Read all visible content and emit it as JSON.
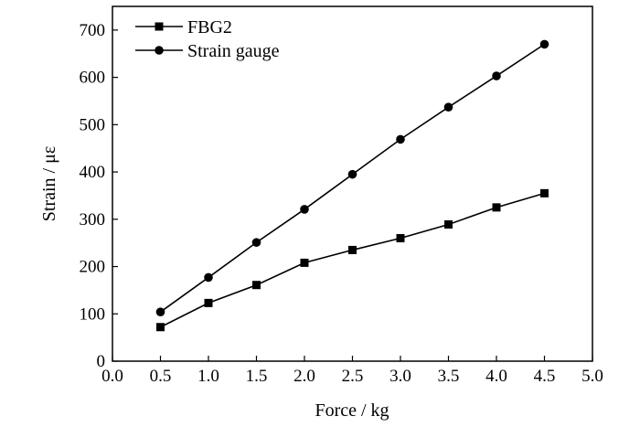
{
  "chart_data": {
    "type": "line",
    "title": "",
    "xlabel": "Force / kg",
    "ylabel": "Strain / με",
    "xlim": [
      0.0,
      5.0
    ],
    "ylim": [
      0,
      750
    ],
    "xticks": [
      "0.0",
      "0.5",
      "1.0",
      "1.5",
      "2.0",
      "2.5",
      "3.0",
      "3.5",
      "4.0",
      "4.5",
      "5.0"
    ],
    "yticks": [
      "0",
      "100",
      "200",
      "300",
      "400",
      "500",
      "600",
      "700"
    ],
    "grid": false,
    "legend_position": "top-left",
    "x": [
      0.5,
      1.0,
      1.5,
      2.0,
      2.5,
      3.0,
      3.5,
      4.0,
      4.5
    ],
    "series": [
      {
        "name": "FBG2",
        "marker": "square",
        "color": "#000000",
        "values": [
          72,
          123,
          161,
          208,
          235,
          260,
          289,
          325,
          355
        ]
      },
      {
        "name": "Strain gauge",
        "marker": "circle",
        "color": "#000000",
        "values": [
          104,
          177,
          251,
          321,
          395,
          469,
          537,
          603,
          670
        ]
      }
    ]
  }
}
